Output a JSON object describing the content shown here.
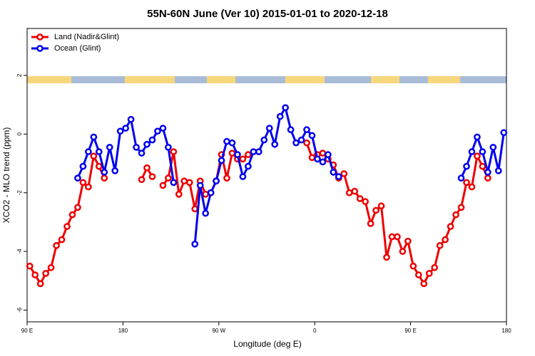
{
  "chart_data": {
    "type": "line",
    "title": "55N-60N June (Ver 10)   2015-01-01 to 2020-12-18",
    "x_label": "Longitude (deg E)",
    "y_label": "XCO2 - MLO trend (ppm)",
    "x": [
      92.5,
      97.5,
      102.5,
      107.5,
      112.5,
      117.5,
      122.5,
      127.5,
      132.5,
      137.5,
      142.5,
      147.5,
      152.5,
      157.5,
      162.5,
      167.5,
      172.5,
      177.5,
      182.5,
      187.5,
      192.5,
      197.5,
      202.5,
      207.5,
      212.5,
      217.5,
      222.5,
      227.5,
      232.5,
      237.5,
      242.5,
      247.5,
      252.5,
      257.5,
      262.5,
      267.5,
      272.5,
      277.5,
      282.5,
      287.5,
      292.5,
      297.5,
      302.5,
      307.5,
      312.5,
      317.5,
      322.5,
      327.5,
      332.5,
      337.5,
      342.5,
      347.5,
      352.5,
      357.5,
      362.5,
      367.5,
      372.5,
      377.5,
      382.5,
      387.5,
      392.5,
      397.5,
      402.5,
      407.5,
      412.5,
      417.5,
      422.5,
      427.5,
      432.5,
      437.5,
      442.5,
      447.5,
      452.5,
      457.5,
      462.5,
      467.5,
      472.5,
      477.5,
      482.5,
      487.5,
      492.5,
      497.5,
      502.5,
      507.5,
      512.5,
      517.5,
      522.5,
      527.5,
      532.5,
      537.5
    ],
    "series": [
      {
        "name": "Land (Nadir&Glint)",
        "color": "#ee0000",
        "values": [
          -4.5,
          -4.8,
          -5.1,
          -4.75,
          -4.55,
          -3.8,
          -3.6,
          -3.15,
          -2.75,
          -2.5,
          -1.65,
          -1.8,
          -0.75,
          -1.1,
          -1.5,
          null,
          null,
          null,
          null,
          null,
          null,
          -1.55,
          -1.15,
          -1.45,
          null,
          -1.75,
          -1.5,
          -0.6,
          -2.05,
          -1.6,
          -1.65,
          -2.55,
          -1.6,
          -2.05,
          -2.0,
          -1.6,
          -0.7,
          -1.5,
          -0.65,
          -0.85,
          -0.85,
          -0.7,
          null,
          null,
          null,
          null,
          null,
          null,
          null,
          null,
          null,
          null,
          -0.3,
          -0.8,
          -0.7,
          -0.65,
          -0.85,
          -1.05,
          -1.5,
          -1.35,
          -2.0,
          -1.95,
          -2.2,
          -2.3,
          -3.05,
          -2.6,
          -2.45,
          -4.2,
          -3.5,
          -3.5,
          -4.0,
          -3.65,
          -4.5,
          -4.8,
          -5.1,
          -4.75,
          -4.55,
          -3.8,
          -3.6,
          -3.15,
          -2.75,
          -2.5,
          -1.65,
          -1.8,
          -0.75,
          -1.1,
          -1.5,
          null,
          null,
          null
        ]
      },
      {
        "name": "Ocean (Glint)",
        "color": "#0000ee",
        "values": [
          null,
          null,
          null,
          null,
          null,
          null,
          null,
          null,
          null,
          -1.5,
          -1.1,
          -0.6,
          -0.1,
          -0.6,
          -1.3,
          -0.45,
          -1.25,
          0.1,
          0.2,
          0.5,
          -0.45,
          -0.65,
          -0.35,
          -0.2,
          0.1,
          0.2,
          -0.45,
          -1.65,
          null,
          null,
          null,
          -3.75,
          -1.75,
          -2.7,
          -2.0,
          -1.6,
          -0.9,
          -0.25,
          -0.3,
          -0.7,
          -1.45,
          -1.1,
          -0.6,
          -0.6,
          -0.2,
          0.2,
          -0.35,
          0.6,
          0.9,
          0.15,
          -0.3,
          -0.2,
          0.15,
          -0.05,
          -0.85,
          -0.95,
          -0.7,
          -1.3,
          -1.45,
          null,
          null,
          null,
          null,
          null,
          null,
          null,
          null,
          null,
          null,
          null,
          null,
          null,
          null,
          null,
          null,
          null,
          null,
          null,
          null,
          null,
          null,
          -1.5,
          -1.1,
          -0.6,
          -0.1,
          -0.6,
          -1.3,
          -0.45,
          -1.25,
          0.05
        ]
      }
    ],
    "xlim": [
      90,
      540
    ],
    "xticks": [
      {
        "value": 90,
        "label": "90 E"
      },
      180,
      {
        "value": 270,
        "label": "90 W"
      },
      {
        "value": 360,
        "label": "0"
      },
      {
        "value": 450,
        "label": "90 E"
      },
      {
        "value": 540,
        "label": "180"
      }
    ],
    "ylim": [
      -6.4,
      3.6
    ],
    "yticks": [
      -6,
      -4,
      -2,
      0,
      2
    ],
    "legend": "top-left"
  }
}
